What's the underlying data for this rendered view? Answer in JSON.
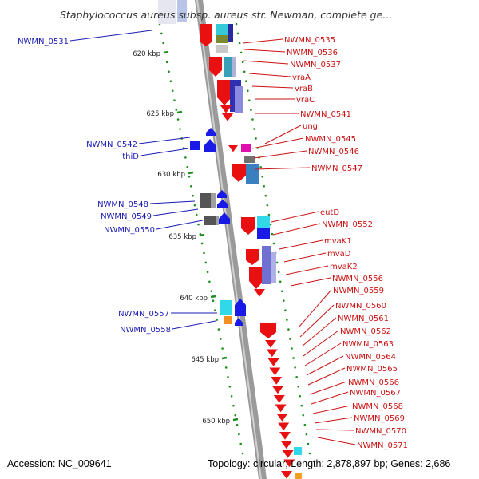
{
  "title": "Staphylococcus aureus subsp. aureus str. Newman, complete ge...",
  "footer": {
    "accession": "Accession: NC_009641",
    "summary": "Topology: circular; Length: 2,878,897 bp; Genes: 2,686"
  },
  "colors": {
    "spine": "#9a9a9a",
    "forward_strand": "#e81010",
    "reverse_strand": "#1a1ae6",
    "left_label": "#1a1ab4",
    "right_label": "#cc1111",
    "tick": "#1e8f1e"
  },
  "kbp_ticks": [
    "620 kbp",
    "625 kbp",
    "630 kbp",
    "635 kbp",
    "640 kbp",
    "645 kbp",
    "650 kbp"
  ],
  "left_genes": [
    "NWMN_0531",
    "NWMN_0542",
    "thiD",
    "NWMN_0548",
    "NWMN_0549",
    "NWMN_0550",
    "NWMN_0557",
    "NWMN_0558"
  ],
  "right_genes": [
    "NWMN_0535",
    "NWMN_0536",
    "NWMN_0537",
    "vraA",
    "vraB",
    "vraC",
    "NWMN_0541",
    "ung",
    "NWMN_0545",
    "NWMN_0546",
    "NWMN_0547",
    "eutD",
    "NWMN_0552",
    "mvaK1",
    "mvaD",
    "mvaK2",
    "NWMN_0556",
    "NWMN_0559",
    "NWMN_0560",
    "NWMN_0561",
    "NWMN_0562",
    "NWMN_0563",
    "NWMN_0564",
    "NWMN_0565",
    "NWMN_0566",
    "NWMN_0567",
    "NWMN_0568",
    "NWMN_0569",
    "NWMN_0570",
    "NWMN_0571"
  ]
}
